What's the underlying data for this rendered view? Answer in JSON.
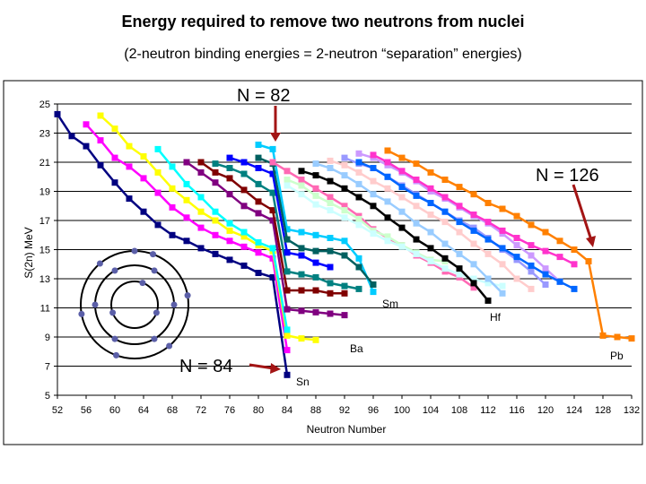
{
  "title": "Energy required to remove two neutrons from nuclei",
  "subtitle": "(2-neutron binding energies = 2-neutron “separation” energies)",
  "chart_data": {
    "type": "line",
    "xlabel": "Neutron Number",
    "ylabel": "S(2n) MeV",
    "xlim": [
      52,
      132
    ],
    "ylim": [
      5,
      25
    ],
    "xticks": [
      52,
      56,
      60,
      64,
      68,
      72,
      76,
      80,
      84,
      88,
      92,
      96,
      100,
      104,
      108,
      112,
      116,
      120,
      124,
      128,
      132
    ],
    "yticks": [
      5,
      7,
      9,
      11,
      13,
      15,
      17,
      19,
      21,
      23,
      25
    ],
    "grid": "horizontal",
    "annotations": {
      "n82": "N = 82",
      "n126": "N = 126",
      "n84": "N = 84",
      "sn": "Sn",
      "ba": "Ba",
      "sm": "Sm",
      "hf": "Hf",
      "pb": "Pb"
    },
    "colors": {
      "arrow": "#a31515"
    },
    "series": [
      {
        "color": "#000080",
        "x": [
          52,
          54,
          56,
          58,
          60,
          62,
          64,
          66,
          68,
          70,
          72,
          74,
          76,
          78,
          80,
          82,
          84
        ],
        "y": [
          24.3,
          22.8,
          22.1,
          20.8,
          19.6,
          18.5,
          17.6,
          16.7,
          16.0,
          15.6,
          15.1,
          14.7,
          14.3,
          13.9,
          13.4,
          13.1,
          6.4
        ]
      },
      {
        "color": "#ff00ff",
        "x": [
          56,
          58,
          60,
          62,
          64,
          66,
          68,
          70,
          72,
          74,
          76,
          78,
          80,
          82,
          84
        ],
        "y": [
          23.6,
          22.5,
          21.3,
          20.7,
          19.9,
          18.9,
          17.9,
          17.2,
          16.5,
          16.0,
          15.6,
          15.2,
          14.8,
          14.4,
          8.1
        ]
      },
      {
        "color": "#ffff00",
        "x": [
          58,
          60,
          62,
          64,
          66,
          68,
          70,
          72,
          74,
          76,
          78,
          80,
          82,
          84,
          86,
          88
        ],
        "y": [
          24.2,
          23.3,
          22.1,
          21.4,
          20.3,
          19.2,
          18.4,
          17.6,
          17.0,
          16.3,
          15.9,
          15.3,
          14.9,
          9.1,
          8.9,
          8.8
        ]
      },
      {
        "color": "#00ffff",
        "x": [
          66,
          68,
          70,
          72,
          74,
          76,
          78,
          80,
          82,
          84
        ],
        "y": [
          21.9,
          20.7,
          19.5,
          18.6,
          17.6,
          16.8,
          16.2,
          15.5,
          15.1,
          9.5
        ]
      },
      {
        "color": "#800080",
        "x": [
          70,
          72,
          74,
          76,
          78,
          80,
          82,
          84,
          86,
          88,
          90,
          92
        ],
        "y": [
          21.0,
          20.3,
          19.6,
          18.8,
          18.0,
          17.5,
          17.0,
          10.9,
          10.8,
          10.7,
          10.6,
          10.5
        ]
      },
      {
        "color": "#800000",
        "x": [
          72,
          74,
          76,
          78,
          80,
          82,
          84,
          86,
          88,
          90,
          92
        ],
        "y": [
          21.0,
          20.3,
          19.9,
          19.1,
          18.3,
          17.7,
          12.2,
          12.2,
          12.2,
          12.0,
          12.0
        ]
      },
      {
        "color": "#008080",
        "x": [
          74,
          76,
          78,
          80,
          82,
          84,
          86,
          88,
          90,
          92,
          94
        ],
        "y": [
          20.9,
          20.6,
          20.2,
          19.5,
          18.9,
          13.5,
          13.3,
          13.1,
          12.7,
          12.5,
          12.3
        ]
      },
      {
        "color": "#0000ff",
        "x": [
          76,
          78,
          80,
          82,
          84,
          86,
          88,
          90
        ],
        "y": [
          21.3,
          21.0,
          20.6,
          20.2,
          14.8,
          14.6,
          14.1,
          13.8
        ]
      },
      {
        "color": "#00ccff",
        "x": [
          80,
          82,
          84,
          86,
          88,
          90,
          92,
          94,
          96
        ],
        "y": [
          22.2,
          21.9,
          16.4,
          16.2,
          16.0,
          15.8,
          15.6,
          14.4,
          12.1
        ]
      },
      {
        "color": "#006060",
        "x": [
          80,
          82,
          84,
          86,
          88,
          90,
          92,
          94,
          96
        ],
        "y": [
          21.3,
          20.9,
          15.7,
          15.1,
          14.9,
          14.9,
          14.6,
          13.8,
          12.6
        ]
      },
      {
        "color": "#ff69b4",
        "x": [
          82,
          84,
          86,
          88,
          90,
          92,
          94,
          96,
          98,
          100,
          102,
          104,
          106,
          108,
          110
        ],
        "y": [
          21.0,
          20.4,
          19.8,
          19.2,
          18.6,
          18.0,
          17.3,
          16.4,
          15.8,
          15.3,
          14.6,
          14.1,
          13.5,
          13.1,
          12.4
        ]
      },
      {
        "color": "#ccffcc",
        "x": [
          84,
          86,
          88,
          90,
          92,
          94,
          96,
          98,
          100,
          102,
          104,
          106
        ],
        "y": [
          19.8,
          19.4,
          18.7,
          18.2,
          17.7,
          17.1,
          16.3,
          15.9,
          15.3,
          14.8,
          14.3,
          14.2
        ]
      },
      {
        "color": "#ccffff",
        "x": [
          84,
          86,
          88,
          90,
          92,
          94,
          96,
          98,
          100,
          102,
          104,
          106,
          108,
          110,
          112,
          114
        ],
        "y": [
          19.4,
          18.8,
          18.1,
          17.7,
          17.2,
          16.7,
          16.1,
          15.6,
          15.2,
          14.7,
          14.2,
          13.7,
          13.3,
          13.0,
          12.7,
          12.5
        ]
      },
      {
        "color": "#000000",
        "x": [
          86,
          88,
          90,
          92,
          94,
          96,
          98,
          100,
          102,
          104,
          106,
          108,
          110,
          112
        ],
        "y": [
          20.4,
          20.1,
          19.7,
          19.2,
          18.6,
          18.0,
          17.2,
          16.5,
          15.7,
          15.1,
          14.4,
          13.7,
          12.7,
          11.5
        ]
      },
      {
        "color": "#99ccff",
        "x": [
          88,
          90,
          92,
          94,
          96,
          98,
          100,
          102,
          104,
          106,
          108,
          110,
          112,
          114
        ],
        "y": [
          20.9,
          20.6,
          20.1,
          19.5,
          18.8,
          18.3,
          17.6,
          16.8,
          16.2,
          15.4,
          14.7,
          14.0,
          13.0,
          12.0
        ]
      },
      {
        "color": "#ffcccc",
        "x": [
          90,
          92,
          94,
          96,
          98,
          100,
          102,
          104,
          106,
          108,
          110,
          112,
          114,
          116,
          118
        ],
        "y": [
          21.1,
          20.8,
          20.3,
          19.7,
          19.2,
          18.6,
          18.0,
          17.4,
          16.9,
          16.2,
          15.4,
          14.7,
          14.0,
          13.0,
          12.3
        ]
      },
      {
        "color": "#9999ff",
        "x": [
          92,
          94,
          96,
          98,
          100,
          102,
          104,
          106,
          108,
          110,
          112,
          114,
          116,
          118,
          120
        ],
        "y": [
          21.3,
          20.9,
          20.6,
          20.0,
          19.4,
          18.8,
          18.2,
          17.6,
          17.0,
          16.5,
          15.8,
          15.0,
          14.3,
          13.5,
          12.6
        ]
      },
      {
        "color": "#cc99ff",
        "x": [
          94,
          96,
          98,
          100,
          102,
          104,
          106,
          108,
          110,
          112,
          114,
          116,
          118,
          120,
          122
        ],
        "y": [
          21.6,
          21.3,
          20.8,
          20.3,
          19.7,
          19.0,
          18.5,
          17.9,
          17.3,
          16.8,
          16.1,
          15.3,
          14.6,
          13.7,
          12.8
        ]
      },
      {
        "color": "#0066ff",
        "x": [
          94,
          96,
          98,
          100,
          102,
          104,
          106,
          108,
          110,
          112,
          114,
          116,
          118,
          120,
          122,
          124
        ],
        "y": [
          21.0,
          20.6,
          20.0,
          19.3,
          18.7,
          18.2,
          17.6,
          16.9,
          16.3,
          15.7,
          15.1,
          14.5,
          13.9,
          13.3,
          12.8,
          12.3
        ]
      },
      {
        "color": "#ff33cc",
        "x": [
          96,
          98,
          100,
          102,
          104,
          106,
          108,
          110,
          112,
          114,
          116,
          118,
          120,
          122,
          124
        ],
        "y": [
          21.5,
          21.0,
          20.4,
          19.8,
          19.2,
          18.6,
          18.0,
          17.4,
          16.9,
          16.3,
          15.8,
          15.3,
          14.9,
          14.5,
          14.0
        ]
      },
      {
        "color": "#ff8000",
        "x": [
          98,
          100,
          102,
          104,
          106,
          108,
          110,
          112,
          114,
          116,
          118,
          120,
          122,
          124,
          126,
          128,
          130,
          132
        ],
        "y": [
          21.8,
          21.3,
          20.9,
          20.3,
          19.8,
          19.3,
          18.8,
          18.2,
          17.8,
          17.3,
          16.7,
          16.2,
          15.6,
          15.0,
          14.2,
          9.1,
          9.0,
          8.9
        ]
      }
    ]
  }
}
